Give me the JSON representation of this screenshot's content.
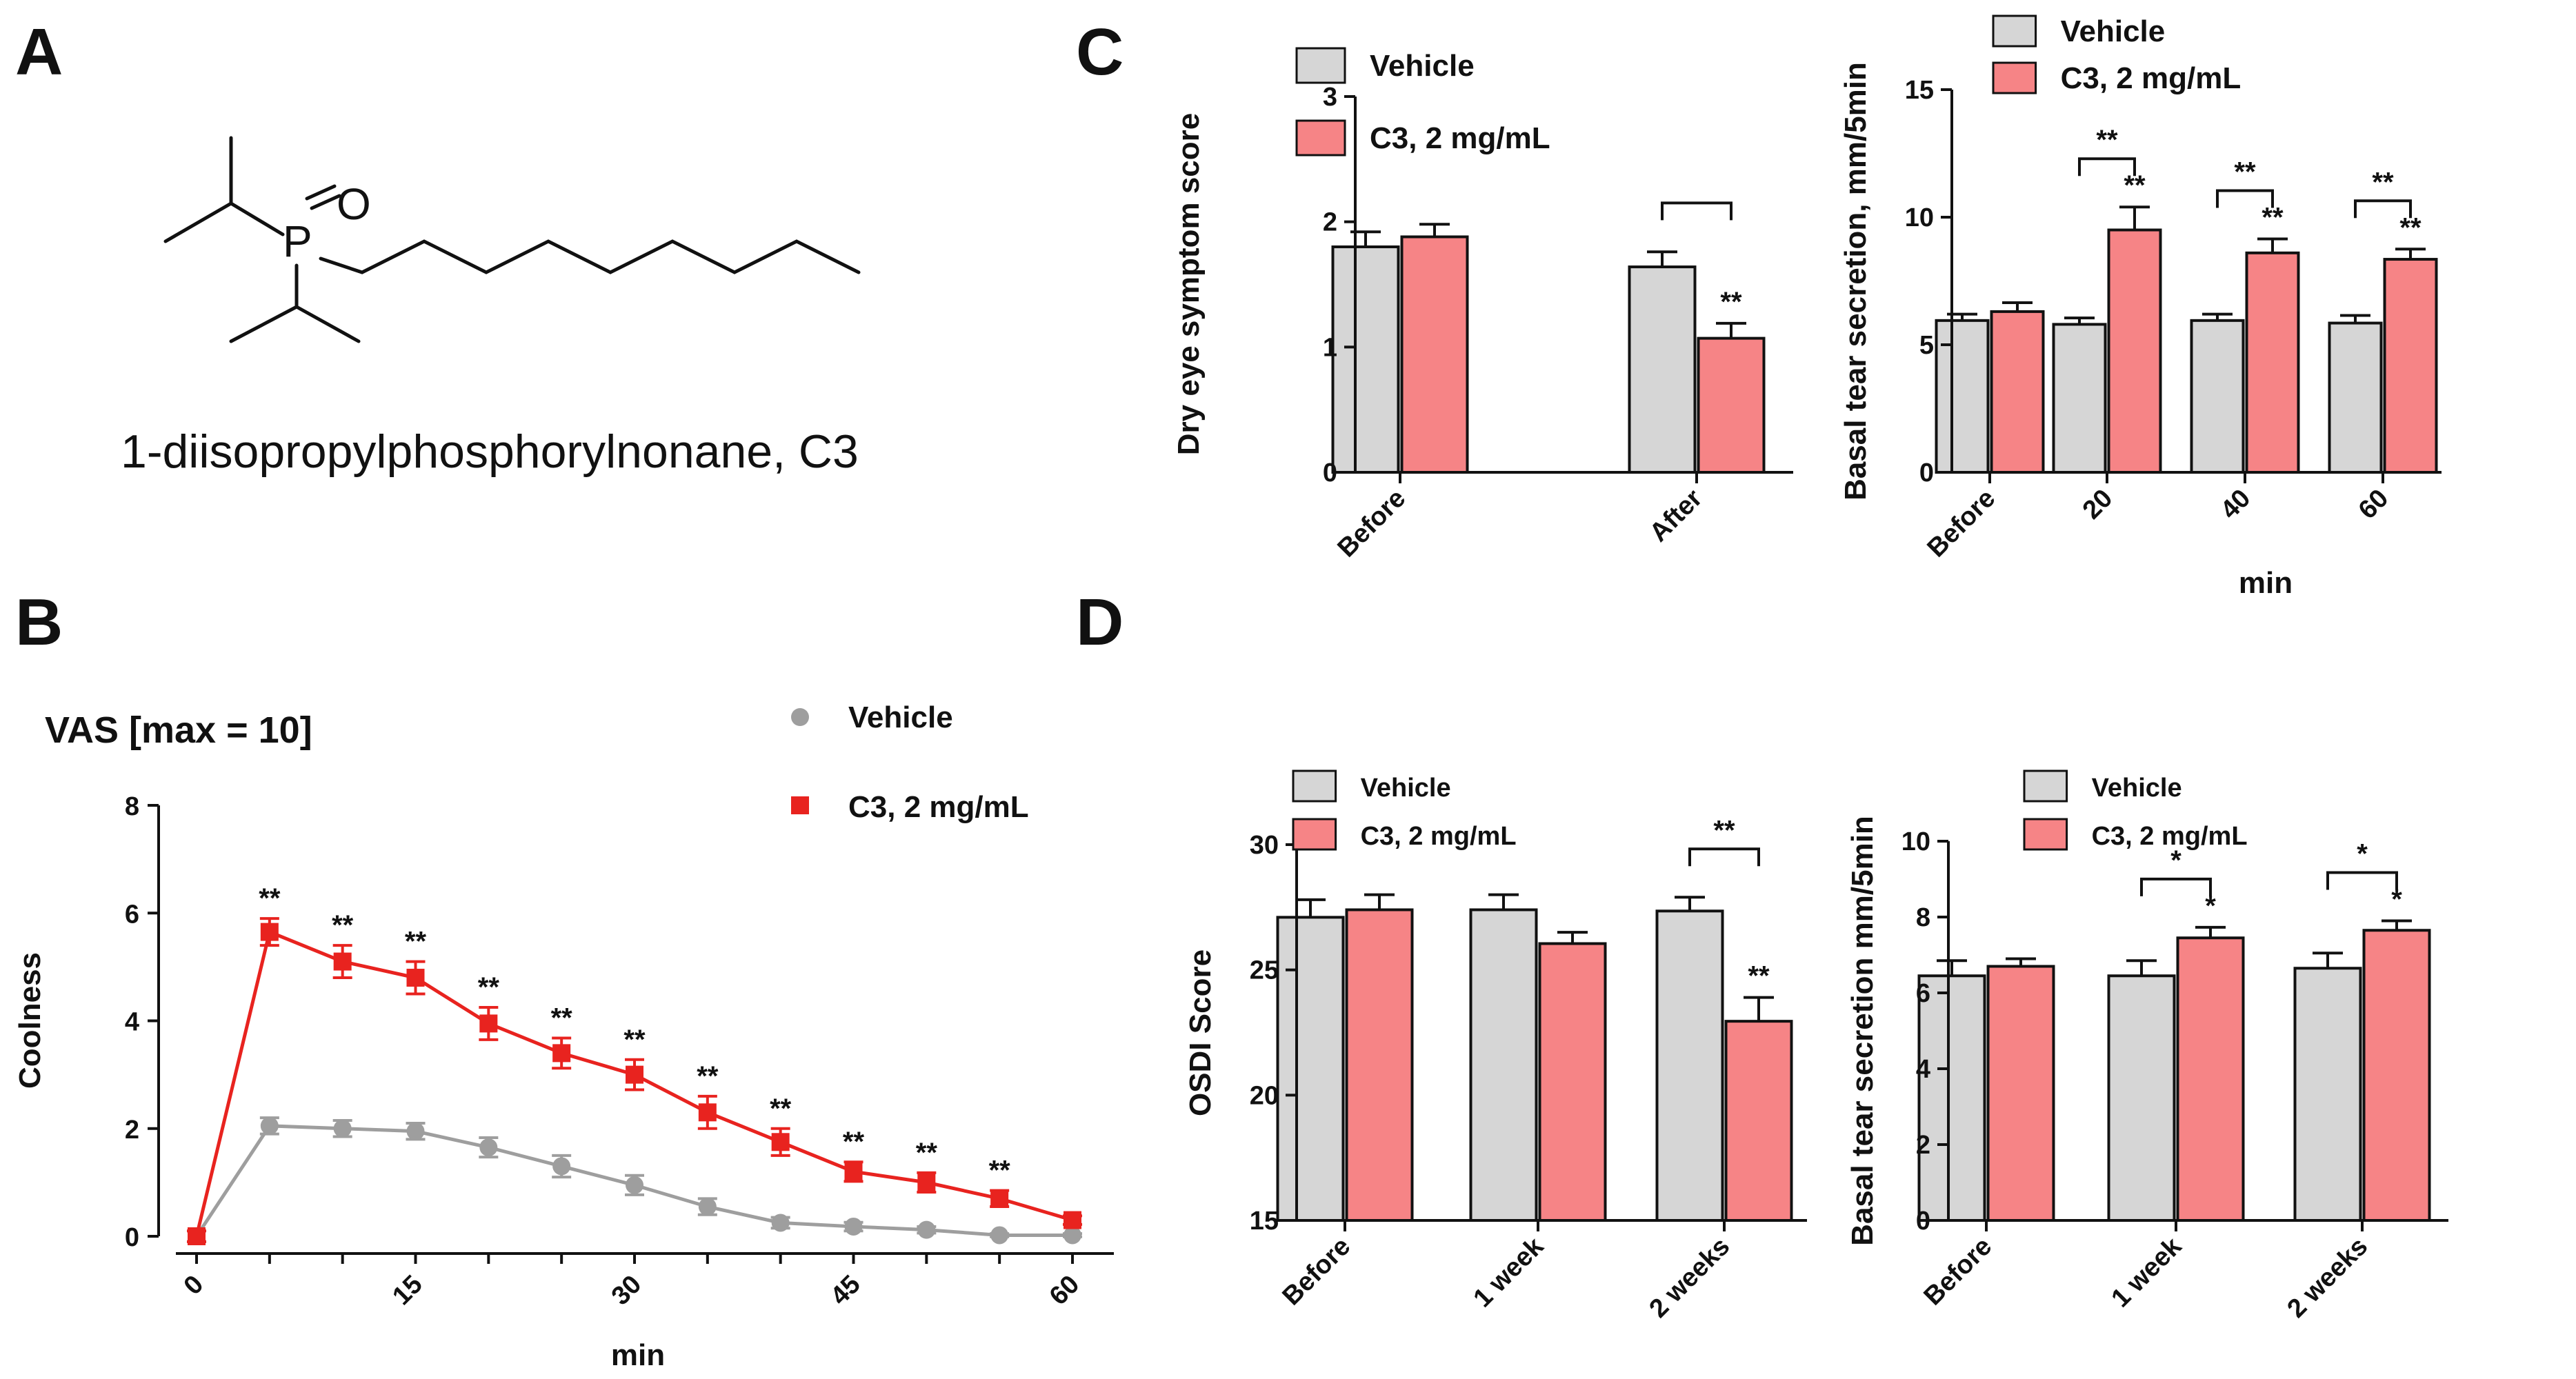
{
  "panels": {
    "A": {
      "letter": "A",
      "compound_name": "1-diisopropylphosphorylnonane, C3",
      "atoms": {
        "P": "P",
        "O": "O"
      }
    },
    "B": {
      "letter": "B"
    },
    "C": {
      "letter": "C"
    },
    "D": {
      "letter": "D"
    }
  },
  "colors": {
    "vehicle_bar": "#d6d6d6",
    "c3_bar": "#f68486",
    "vehicle_line": "#9e9e9e",
    "c3_line": "#e8231f",
    "axis": "#111111"
  },
  "chart_data": [
    {
      "id": "B",
      "type": "line",
      "title": "VAS [max = 10]",
      "xlabel": "min",
      "ylabel": "Coolness",
      "xlim": [
        0,
        60
      ],
      "ylim": [
        0,
        8
      ],
      "xticks": [
        "0",
        "15",
        "30",
        "45",
        "60"
      ],
      "yticks": [
        "0",
        "2",
        "4",
        "6",
        "8"
      ],
      "legend": "top-right",
      "x": [
        0,
        5,
        10,
        15,
        20,
        25,
        30,
        35,
        40,
        45,
        50,
        55,
        60
      ],
      "series": [
        {
          "name": "Vehicle",
          "marker": "circle",
          "values": [
            0,
            2.05,
            2.0,
            1.95,
            1.65,
            1.3,
            0.95,
            0.55,
            0.25,
            0.18,
            0.12,
            0.02,
            0.02
          ],
          "errors": [
            0.1,
            0.15,
            0.15,
            0.15,
            0.18,
            0.2,
            0.18,
            0.15,
            0.1,
            0.08,
            0.06,
            0.03,
            0.03
          ]
        },
        {
          "name": "C3, 2 mg/mL",
          "marker": "square",
          "values": [
            0,
            5.65,
            5.1,
            4.8,
            3.95,
            3.4,
            3.0,
            2.3,
            1.75,
            1.2,
            1.0,
            0.7,
            0.3
          ],
          "errors": [
            0.1,
            0.25,
            0.3,
            0.3,
            0.3,
            0.28,
            0.28,
            0.3,
            0.25,
            0.18,
            0.18,
            0.15,
            0.08
          ]
        }
      ],
      "annotations": [
        "**",
        "**",
        "**",
        "**",
        "**",
        "**",
        "**",
        "**",
        "**",
        "**",
        "**"
      ]
    },
    {
      "id": "C-left",
      "type": "bar",
      "xlabel": "",
      "ylabel": "Dry eye symptom score",
      "ylim": [
        0,
        3
      ],
      "yticks": [
        "0",
        "1",
        "2",
        "3"
      ],
      "categories": [
        "Before",
        "After"
      ],
      "legend": "top-left",
      "series": [
        {
          "name": "Vehicle",
          "values": [
            1.8,
            1.64
          ],
          "errors": [
            0.12,
            0.12
          ]
        },
        {
          "name": "C3, 2 mg/mL",
          "values": [
            1.88,
            1.07
          ],
          "errors": [
            0.1,
            0.12
          ]
        }
      ],
      "annotations": [
        "**"
      ]
    },
    {
      "id": "C-right",
      "type": "bar",
      "xlabel": "min",
      "ylabel": "Basal tear secretion, mm/5min",
      "ylim": [
        0,
        15
      ],
      "yticks": [
        "0",
        "5",
        "10",
        "15"
      ],
      "categories": [
        "Before",
        "20",
        "40",
        "60"
      ],
      "legend": "top-left",
      "series": [
        {
          "name": "Vehicle",
          "values": [
            5.95,
            5.8,
            5.95,
            5.85
          ],
          "errors": [
            0.25,
            0.25,
            0.25,
            0.3
          ]
        },
        {
          "name": "C3, 2 mg/mL",
          "values": [
            6.3,
            9.5,
            8.6,
            8.35
          ],
          "errors": [
            0.35,
            0.9,
            0.55,
            0.4
          ]
        }
      ],
      "annotations": [
        "**",
        "**",
        "**",
        "**",
        "**",
        "**"
      ]
    },
    {
      "id": "D-left",
      "type": "bar",
      "xlabel": "",
      "ylabel": "OSDI Score",
      "ylim": [
        15,
        30
      ],
      "yticks": [
        "15",
        "20",
        "25",
        "30"
      ],
      "categories": [
        "Before",
        "1 week",
        "2 weeks"
      ],
      "legend": "top-left",
      "series": [
        {
          "name": "Vehicle",
          "values": [
            27.1,
            27.4,
            27.35
          ],
          "errors": [
            0.7,
            0.6,
            0.55
          ]
        },
        {
          "name": "C3, 2 mg/mL",
          "values": [
            27.4,
            26.05,
            22.95
          ],
          "errors": [
            0.6,
            0.45,
            0.95
          ]
        }
      ],
      "annotations": [
        "**",
        "**"
      ]
    },
    {
      "id": "D-right",
      "type": "bar",
      "xlabel": "",
      "ylabel": "Basal tear secretion mm/5min",
      "ylim": [
        0,
        10
      ],
      "yticks": [
        "0",
        "2",
        "4",
        "6",
        "8",
        "10"
      ],
      "categories": [
        "Before",
        "1 week",
        "2 weeks"
      ],
      "legend": "top-left",
      "series": [
        {
          "name": "Vehicle",
          "values": [
            6.45,
            6.45,
            6.65
          ],
          "errors": [
            0.4,
            0.4,
            0.4
          ]
        },
        {
          "name": "C3, 2 mg/mL",
          "values": [
            6.7,
            7.45,
            7.65
          ],
          "errors": [
            0.2,
            0.28,
            0.25
          ]
        }
      ],
      "annotations": [
        "*",
        "*",
        "*",
        "*"
      ]
    }
  ]
}
